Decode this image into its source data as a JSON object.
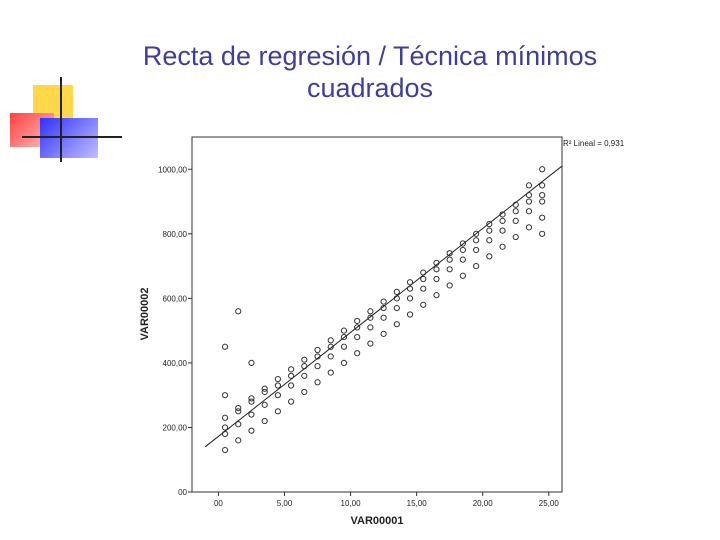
{
  "slide": {
    "title_line1": "Recta de regresión / Técnica mínimos",
    "title_line2": "cuadrados",
    "title_color": "#3f3f9a"
  },
  "decoration": {
    "colors": [
      "#ffd84a",
      "#ff5555",
      "#4b4bff",
      "#222222"
    ]
  },
  "chart_data": {
    "type": "scatter",
    "xlabel": "VAR00001",
    "ylabel": "VAR00002",
    "xlim": [
      -2,
      26
    ],
    "ylim": [
      0,
      1100
    ],
    "x_ticks": [
      0,
      5,
      10,
      15,
      20,
      25
    ],
    "x_tick_labels": [
      "00",
      "5,00",
      "10,00",
      "15,00",
      "20,00",
      "25,00"
    ],
    "y_ticks": [
      0,
      200,
      400,
      600,
      800,
      1000
    ],
    "y_tick_labels": [
      "00",
      "200,00",
      "400,00",
      "600,00",
      "800,00",
      "1000,00"
    ],
    "annotation": "R² Lineal = 0,931",
    "grid": false,
    "regression_line": {
      "x": [
        -1,
        26
      ],
      "y": [
        140,
        1010
      ]
    },
    "points": [
      [
        0.5,
        130
      ],
      [
        0.5,
        180
      ],
      [
        0.5,
        200
      ],
      [
        0.5,
        230
      ],
      [
        0.5,
        300
      ],
      [
        0.5,
        450
      ],
      [
        1.5,
        160
      ],
      [
        1.5,
        210
      ],
      [
        1.5,
        250
      ],
      [
        1.5,
        260
      ],
      [
        1.5,
        560
      ],
      [
        2.5,
        190
      ],
      [
        2.5,
        240
      ],
      [
        2.5,
        280
      ],
      [
        2.5,
        290
      ],
      [
        2.5,
        400
      ],
      [
        3.5,
        220
      ],
      [
        3.5,
        270
      ],
      [
        3.5,
        310
      ],
      [
        3.5,
        320
      ],
      [
        4.5,
        250
      ],
      [
        4.5,
        300
      ],
      [
        4.5,
        330
      ],
      [
        4.5,
        350
      ],
      [
        5.5,
        280
      ],
      [
        5.5,
        330
      ],
      [
        5.5,
        360
      ],
      [
        5.5,
        380
      ],
      [
        6.5,
        310
      ],
      [
        6.5,
        360
      ],
      [
        6.5,
        390
      ],
      [
        6.5,
        410
      ],
      [
        7.5,
        340
      ],
      [
        7.5,
        390
      ],
      [
        7.5,
        420
      ],
      [
        7.5,
        440
      ],
      [
        8.5,
        370
      ],
      [
        8.5,
        420
      ],
      [
        8.5,
        450
      ],
      [
        8.5,
        470
      ],
      [
        9.5,
        400
      ],
      [
        9.5,
        450
      ],
      [
        9.5,
        480
      ],
      [
        9.5,
        500
      ],
      [
        10.5,
        430
      ],
      [
        10.5,
        480
      ],
      [
        10.5,
        510
      ],
      [
        10.5,
        530
      ],
      [
        11.5,
        460
      ],
      [
        11.5,
        510
      ],
      [
        11.5,
        540
      ],
      [
        11.5,
        560
      ],
      [
        12.5,
        490
      ],
      [
        12.5,
        540
      ],
      [
        12.5,
        570
      ],
      [
        12.5,
        590
      ],
      [
        13.5,
        520
      ],
      [
        13.5,
        570
      ],
      [
        13.5,
        600
      ],
      [
        13.5,
        620
      ],
      [
        14.5,
        550
      ],
      [
        14.5,
        600
      ],
      [
        14.5,
        630
      ],
      [
        14.5,
        650
      ],
      [
        15.5,
        580
      ],
      [
        15.5,
        630
      ],
      [
        15.5,
        660
      ],
      [
        15.5,
        680
      ],
      [
        16.5,
        610
      ],
      [
        16.5,
        660
      ],
      [
        16.5,
        690
      ],
      [
        16.5,
        710
      ],
      [
        17.5,
        640
      ],
      [
        17.5,
        690
      ],
      [
        17.5,
        720
      ],
      [
        17.5,
        740
      ],
      [
        18.5,
        670
      ],
      [
        18.5,
        720
      ],
      [
        18.5,
        750
      ],
      [
        18.5,
        770
      ],
      [
        19.5,
        700
      ],
      [
        19.5,
        750
      ],
      [
        19.5,
        780
      ],
      [
        19.5,
        800
      ],
      [
        20.5,
        730
      ],
      [
        20.5,
        780
      ],
      [
        20.5,
        810
      ],
      [
        20.5,
        830
      ],
      [
        21.5,
        760
      ],
      [
        21.5,
        810
      ],
      [
        21.5,
        840
      ],
      [
        21.5,
        860
      ],
      [
        22.5,
        790
      ],
      [
        22.5,
        840
      ],
      [
        22.5,
        870
      ],
      [
        22.5,
        890
      ],
      [
        23.5,
        820
      ],
      [
        23.5,
        870
      ],
      [
        23.5,
        900
      ],
      [
        23.5,
        920
      ],
      [
        23.5,
        950
      ],
      [
        24.5,
        800
      ],
      [
        24.5,
        850
      ],
      [
        24.5,
        900
      ],
      [
        24.5,
        920
      ],
      [
        24.5,
        950
      ],
      [
        24.5,
        1000
      ]
    ]
  }
}
